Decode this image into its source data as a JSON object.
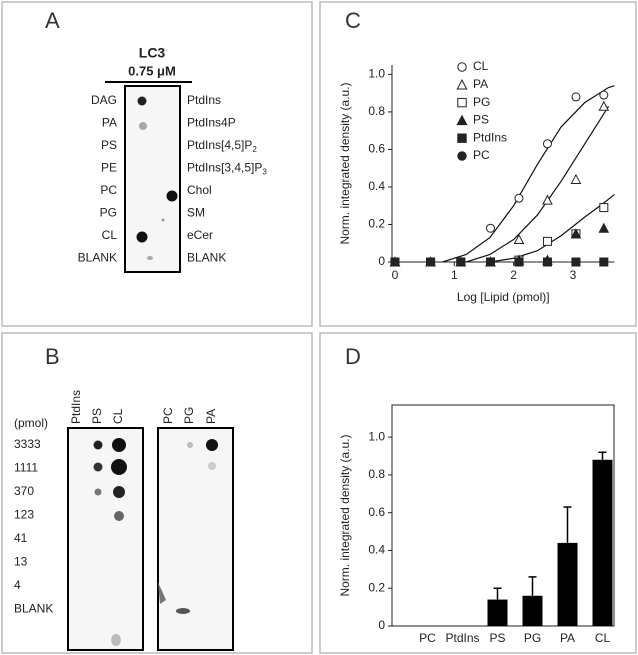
{
  "panel_labels": [
    "A",
    "B",
    "C",
    "D"
  ],
  "panel_a": {
    "protein": "LC3",
    "concentration": "0.75 μM",
    "left_labels": [
      "DAG",
      "PA",
      "PS",
      "PE",
      "PC",
      "PG",
      "CL",
      "BLANK"
    ],
    "right_labels": [
      {
        "text": "PtdIns"
      },
      {
        "text": "PtdIns4P"
      },
      {
        "text": "PtdIns[4,5]P",
        "sub": "2"
      },
      {
        "text": "PtdIns[3,4,5]P",
        "sub": "3"
      },
      {
        "text": "Chol"
      },
      {
        "text": "SM"
      },
      {
        "text": "eCer"
      },
      {
        "text": "BLANK"
      }
    ]
  },
  "panel_b": {
    "left_columns": [
      "PtdIns",
      "PS",
      "CL"
    ],
    "right_columns": [
      "PC",
      "PG",
      "PA"
    ],
    "unit": "(pmol)",
    "rows": [
      "3333",
      "1111",
      "370",
      "123",
      "41",
      "13",
      "4",
      "BLANK"
    ]
  },
  "chart_data": [
    {
      "type": "scatter",
      "xlabel": "Log [Lipid (pmol)]",
      "ylabel": "Norm. integrated density (a.u.)",
      "xlim": [
        -0.05,
        3.7
      ],
      "ylim": [
        0,
        1.05
      ],
      "xticks": [
        0,
        1,
        2,
        3
      ],
      "yticks": [
        0,
        0.2,
        0.4,
        0.6,
        0.8,
        {
          "value": 1,
          "label": "1.0"
        }
      ],
      "legend": "upper left",
      "x": [
        0,
        0.6,
        1.11,
        1.61,
        2.09,
        2.57,
        3.05,
        3.52
      ],
      "series": [
        {
          "name": "CL",
          "marker": "circle",
          "filled": false,
          "color": "#222",
          "values": [
            0,
            0,
            0,
            0.18,
            0.34,
            0.63,
            0.88,
            0.89
          ]
        },
        {
          "name": "PA",
          "marker": "triangle",
          "filled": false,
          "color": "#222",
          "values": [
            0,
            0,
            0,
            0,
            0.12,
            0.33,
            0.44,
            0.83
          ]
        },
        {
          "name": "PG",
          "marker": "square",
          "filled": false,
          "color": "#222",
          "values": [
            0,
            0,
            0,
            0,
            0.01,
            0.11,
            0.15,
            0.29
          ]
        },
        {
          "name": "PS",
          "marker": "triangle",
          "filled": true,
          "color": "#222",
          "values": [
            0,
            0,
            0,
            0,
            0.01,
            0.01,
            0.15,
            0.18
          ]
        },
        {
          "name": "PtdIns",
          "marker": "square",
          "filled": true,
          "color": "#222",
          "values": [
            0,
            0,
            0,
            0,
            0,
            0,
            0,
            0
          ]
        },
        {
          "name": "PC",
          "marker": "circle",
          "filled": true,
          "color": "#222",
          "values": [
            0,
            0,
            0,
            0,
            0,
            0,
            0,
            0
          ]
        }
      ],
      "fit_curves": [
        {
          "x": [
            0.8,
            1.2,
            1.6,
            2.0,
            2.4,
            2.8,
            3.2,
            3.6,
            3.7
          ],
          "values": [
            0,
            0.04,
            0.13,
            0.3,
            0.52,
            0.72,
            0.85,
            0.93,
            0.94
          ]
        },
        {
          "x": [
            1.2,
            1.6,
            2.0,
            2.4,
            2.8,
            3.2,
            3.5,
            3.6
          ],
          "values": [
            0,
            0.04,
            0.12,
            0.25,
            0.43,
            0.63,
            0.78,
            0.83
          ]
        },
        {
          "x": [
            1.6,
            2.0,
            2.4,
            2.8,
            3.2,
            3.5,
            3.7
          ],
          "values": [
            0,
            0.02,
            0.06,
            0.14,
            0.24,
            0.31,
            0.36
          ]
        }
      ]
    },
    {
      "type": "bar",
      "ylabel": "Norm. integrated density (a.u.)",
      "ylim": [
        0,
        1.17
      ],
      "yticks": [
        0,
        0.2,
        0.4,
        0.6,
        0.8,
        {
          "value": 1,
          "label": "1.0"
        }
      ],
      "categories": [
        "PC",
        "PtdIns",
        "PS",
        "PG",
        "PA",
        "CL"
      ],
      "values": [
        0,
        0,
        0.14,
        0.16,
        0.44,
        0.88
      ],
      "errors": [
        0,
        0,
        0.06,
        0.1,
        0.19,
        0.04
      ],
      "color": "#000"
    }
  ]
}
